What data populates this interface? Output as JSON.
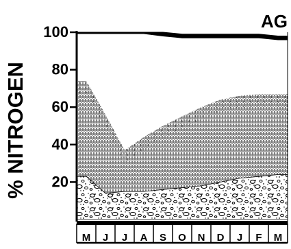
{
  "chart_data": {
    "type": "area",
    "panel_label": "AG",
    "ylabel": "% NITROGEN",
    "xlabel": "",
    "ylim": [
      0,
      100
    ],
    "yticks": [
      "100",
      "80",
      "60",
      "40",
      "20"
    ],
    "ytick_values": [
      100,
      80,
      60,
      40,
      20
    ],
    "categories": [
      "M",
      "J",
      "J",
      "A",
      "S",
      "O",
      "N",
      "D",
      "J",
      "F",
      "M"
    ],
    "series": [
      {
        "pattern": "pebbles",
        "color": "#000000",
        "values": [
          23,
          14,
          15,
          15,
          16,
          17,
          18,
          20,
          22,
          23,
          24
        ]
      },
      {
        "pattern": "vertical-hatch",
        "color": "#000000",
        "values": [
          74,
          56,
          37,
          44,
          50,
          55,
          60,
          64,
          66,
          67,
          67
        ]
      },
      {
        "pattern": "dense-band",
        "color": "#000000",
        "values": [
          100,
          100,
          100,
          100,
          100,
          99,
          99,
          99,
          99,
          99,
          98
        ]
      }
    ],
    "grid": false,
    "legend": "none"
  }
}
